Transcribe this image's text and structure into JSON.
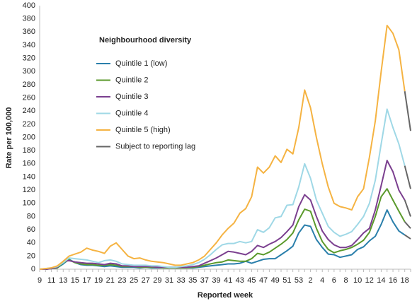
{
  "chart_data": {
    "type": "line",
    "xlabel": "Reported week",
    "ylabel": "Rate per 100,000",
    "legend_title": "Neighbourhood diversity",
    "categories": [
      9,
      null,
      11,
      null,
      13,
      null,
      15,
      null,
      17,
      null,
      19,
      null,
      21,
      null,
      23,
      null,
      25,
      null,
      27,
      null,
      29,
      null,
      31,
      null,
      33,
      null,
      35,
      null,
      37,
      null,
      39,
      null,
      41,
      null,
      43,
      null,
      45,
      null,
      47,
      null,
      49,
      null,
      51,
      null,
      53,
      null,
      2,
      null,
      4,
      null,
      6,
      null,
      8,
      null,
      10,
      null,
      12,
      null,
      14,
      null,
      16,
      null,
      18,
      null
    ],
    "ylim": [
      0,
      400
    ],
    "yticks": [
      0,
      20,
      40,
      60,
      80,
      100,
      120,
      140,
      160,
      180,
      200,
      220,
      240,
      260,
      280,
      300,
      320,
      340,
      360,
      380,
      400
    ],
    "grid": false,
    "series": [
      {
        "name": "Quintile 1 (low)",
        "color": "#2a7fab",
        "values": [
          0,
          0,
          1,
          2,
          8,
          15,
          10,
          7,
          6,
          6,
          5,
          4,
          5,
          4,
          3,
          3,
          3,
          2,
          3,
          2,
          2,
          2,
          2,
          2,
          2,
          2,
          2,
          3,
          4,
          5,
          6,
          7,
          8,
          8,
          9,
          12,
          9,
          12,
          15,
          16,
          16,
          22,
          28,
          35,
          55,
          67,
          65,
          45,
          33,
          23,
          22,
          18,
          20,
          22,
          30,
          34,
          43,
          50,
          68,
          90,
          72,
          58,
          52,
          null
        ],
        "lag_values": [
          null,
          null,
          null,
          null,
          null,
          null,
          null,
          null,
          null,
          null,
          null,
          null,
          null,
          null,
          null,
          null,
          null,
          null,
          null,
          null,
          null,
          null,
          null,
          null,
          null,
          null,
          null,
          null,
          null,
          null,
          null,
          null,
          null,
          null,
          null,
          null,
          null,
          null,
          null,
          null,
          null,
          null,
          null,
          null,
          null,
          null,
          null,
          null,
          null,
          null,
          null,
          null,
          null,
          null,
          null,
          null,
          null,
          null,
          null,
          null,
          null,
          null,
          null,
          46
        ]
      },
      {
        "name": "Quintile 2",
        "color": "#5b9a2c",
        "values": [
          0,
          0,
          1,
          2,
          10,
          14,
          10,
          8,
          7,
          7,
          6,
          6,
          7,
          6,
          4,
          4,
          4,
          3,
          3,
          3,
          3,
          2,
          2,
          2,
          2,
          2,
          3,
          4,
          6,
          8,
          10,
          11,
          14,
          13,
          12,
          12,
          16,
          24,
          22,
          26,
          32,
          38,
          45,
          55,
          75,
          91,
          88,
          62,
          42,
          30,
          25,
          28,
          30,
          33,
          38,
          44,
          56,
          80,
          110,
          122,
          105,
          88,
          72,
          null
        ],
        "lag_values": [
          null,
          null,
          null,
          null,
          null,
          null,
          null,
          null,
          null,
          null,
          null,
          null,
          null,
          null,
          null,
          null,
          null,
          null,
          null,
          null,
          null,
          null,
          null,
          null,
          null,
          null,
          null,
          null,
          null,
          null,
          null,
          null,
          null,
          null,
          null,
          null,
          null,
          null,
          null,
          null,
          null,
          null,
          null,
          null,
          null,
          null,
          null,
          null,
          null,
          null,
          null,
          null,
          null,
          null,
          null,
          null,
          null,
          null,
          null,
          null,
          null,
          null,
          null,
          62
        ]
      },
      {
        "name": "Quintile 3",
        "color": "#7b3f8f",
        "values": [
          0,
          0,
          1,
          3,
          12,
          13,
          11,
          10,
          9,
          9,
          8,
          7,
          9,
          8,
          5,
          5,
          4,
          4,
          4,
          4,
          3,
          3,
          3,
          3,
          3,
          3,
          4,
          5,
          9,
          13,
          17,
          22,
          27,
          26,
          24,
          22,
          27,
          36,
          33,
          38,
          42,
          48,
          57,
          67,
          95,
          113,
          105,
          80,
          58,
          45,
          37,
          33,
          33,
          36,
          45,
          55,
          62,
          90,
          127,
          165,
          148,
          120,
          105,
          null
        ],
        "lag_values": [
          null,
          null,
          null,
          null,
          null,
          null,
          null,
          null,
          null,
          null,
          null,
          null,
          null,
          null,
          null,
          null,
          null,
          null,
          null,
          null,
          null,
          null,
          null,
          null,
          null,
          null,
          null,
          null,
          null,
          null,
          null,
          null,
          null,
          null,
          null,
          null,
          null,
          null,
          null,
          null,
          null,
          null,
          null,
          null,
          null,
          null,
          null,
          null,
          null,
          null,
          null,
          null,
          null,
          null,
          null,
          null,
          null,
          null,
          null,
          null,
          null,
          null,
          null,
          80
        ]
      },
      {
        "name": "Quintile 4",
        "color": "#9fd8e6",
        "values": [
          0,
          1,
          2,
          4,
          10,
          17,
          16,
          15,
          14,
          12,
          10,
          13,
          14,
          12,
          8,
          7,
          6,
          6,
          6,
          5,
          5,
          4,
          3,
          3,
          4,
          5,
          7,
          10,
          15,
          22,
          30,
          37,
          39,
          39,
          42,
          40,
          42,
          60,
          56,
          63,
          78,
          80,
          97,
          98,
          125,
          160,
          138,
          105,
          85,
          65,
          56,
          50,
          53,
          57,
          68,
          80,
          100,
          135,
          190,
          243,
          215,
          190,
          157,
          null
        ],
        "lag_values": [
          null,
          null,
          null,
          null,
          null,
          null,
          null,
          null,
          null,
          null,
          null,
          null,
          null,
          null,
          null,
          null,
          null,
          null,
          null,
          null,
          null,
          null,
          null,
          null,
          null,
          null,
          null,
          null,
          null,
          null,
          null,
          null,
          null,
          null,
          null,
          null,
          null,
          null,
          null,
          null,
          null,
          null,
          null,
          null,
          null,
          null,
          null,
          null,
          null,
          null,
          null,
          null,
          null,
          null,
          null,
          null,
          null,
          null,
          null,
          null,
          null,
          null,
          null,
          122
        ]
      },
      {
        "name": "Quintile 5 (high)",
        "color": "#f5b342",
        "values": [
          0,
          1,
          2,
          5,
          12,
          20,
          23,
          26,
          32,
          29,
          27,
          24,
          35,
          40,
          30,
          20,
          16,
          17,
          14,
          12,
          11,
          10,
          8,
          6,
          6,
          8,
          10,
          14,
          20,
          30,
          40,
          52,
          62,
          70,
          85,
          92,
          110,
          155,
          146,
          155,
          172,
          162,
          182,
          175,
          215,
          272,
          245,
          200,
          160,
          125,
          100,
          95,
          93,
          90,
          110,
          122,
          170,
          225,
          300,
          370,
          358,
          333,
          270,
          null
        ],
        "lag_values": [
          null,
          null,
          null,
          null,
          null,
          null,
          null,
          null,
          null,
          null,
          null,
          null,
          null,
          null,
          null,
          null,
          null,
          null,
          null,
          null,
          null,
          null,
          null,
          null,
          null,
          null,
          null,
          null,
          null,
          null,
          null,
          null,
          null,
          null,
          null,
          null,
          null,
          null,
          null,
          null,
          null,
          null,
          null,
          null,
          null,
          null,
          null,
          null,
          null,
          null,
          null,
          null,
          null,
          null,
          null,
          null,
          null,
          null,
          null,
          null,
          null,
          null,
          null,
          210
        ]
      }
    ],
    "lag": {
      "name": "Subject to reporting lag",
      "color": "#666666"
    }
  }
}
